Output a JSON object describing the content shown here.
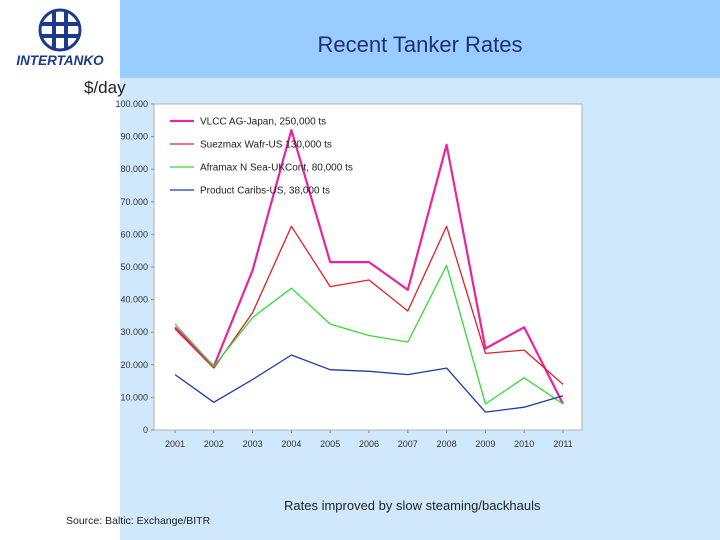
{
  "header": {
    "logo_text": "INTERTANKO",
    "title": "Recent Tanker Rates"
  },
  "chart_data": {
    "type": "line",
    "title": "Recent Tanker Rates",
    "ylabel": "$/day",
    "xlabel": "",
    "categories": [
      "2001",
      "2002",
      "2003",
      "2004",
      "2005",
      "2006",
      "2007",
      "2008",
      "2009",
      "2010",
      "2011"
    ],
    "ylim": [
      0,
      100000
    ],
    "yticks": [
      0,
      10000,
      20000,
      30000,
      40000,
      50000,
      60000,
      70000,
      80000,
      90000,
      100000
    ],
    "ytick_labels": [
      "0",
      "10.000",
      "20.000",
      "30.000",
      "40.000",
      "50.000",
      "60.000",
      "70.000",
      "80.000",
      "90.000",
      "100.000"
    ],
    "grid": false,
    "legend": "top-left",
    "series": [
      {
        "name": "VLCC AG-Japan, 250,000 ts",
        "color": "#e8249e",
        "values": [
          31500,
          19500,
          49000,
          92000,
          51500,
          51500,
          43000,
          87500,
          25000,
          31500,
          8000
        ]
      },
      {
        "name": "Suezmax Wafr-US 130,000 ts",
        "color": "#e0202a",
        "values": [
          31000,
          19000,
          36000,
          62500,
          44000,
          46000,
          36500,
          62500,
          23500,
          24500,
          14000
        ]
      },
      {
        "name": "Aframax N Sea-UKCont, 80,000 ts",
        "color": "#33dd33",
        "values": [
          32500,
          19500,
          34500,
          43500,
          32500,
          29000,
          27000,
          50500,
          8000,
          16000,
          8000
        ]
      },
      {
        "name": "Product Caribs-US, 38,000 ts",
        "color": "#1c3aa8",
        "values": [
          17000,
          8500,
          15500,
          23000,
          18500,
          18000,
          17000,
          19000,
          5500,
          7000,
          10500
        ]
      }
    ]
  },
  "footer": {
    "caption": "Rates improved by slow steaming/backhauls",
    "source": "Source: Baltic: Exchange/BITR"
  }
}
